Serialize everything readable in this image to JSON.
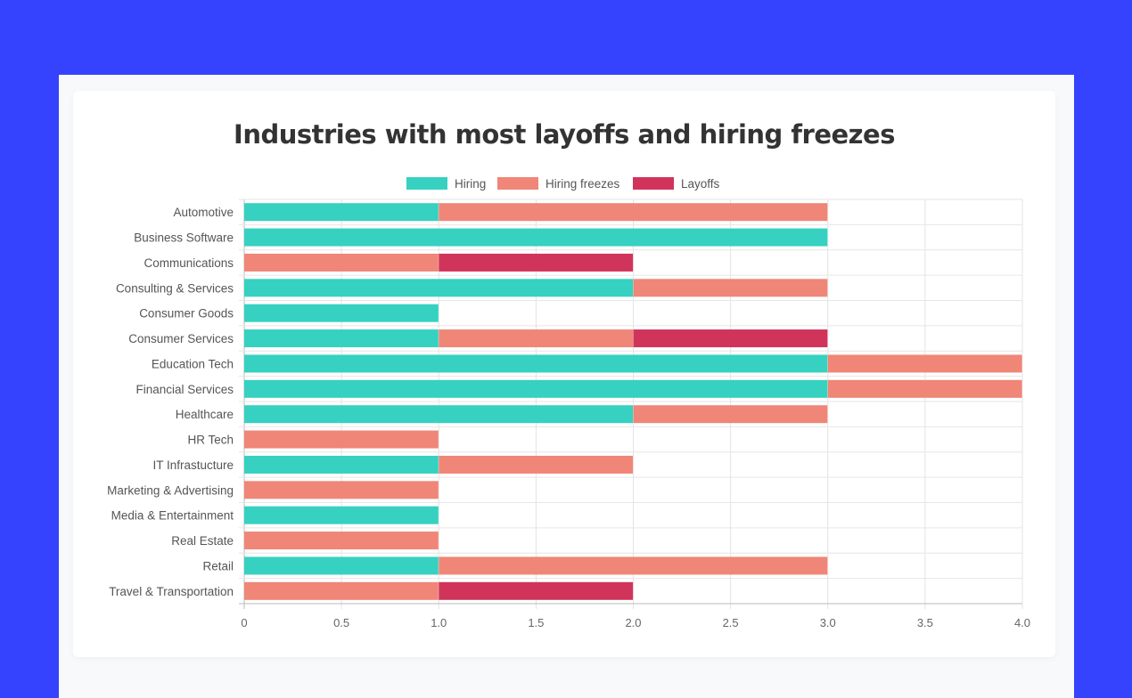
{
  "chart_data": {
    "type": "bar",
    "orientation": "horizontal",
    "stacked": true,
    "title": "Industries with most layoffs and hiring freezes",
    "categories": [
      "Automotive",
      "Business Software",
      "Communications",
      "Consulting & Services",
      "Consumer Goods",
      "Consumer Services",
      "Education Tech",
      "Financial Services",
      "Healthcare",
      "HR Tech",
      "IT Infrastucture",
      "Marketing & Advertising",
      "Media & Entertainment",
      "Real Estate",
      "Retail",
      "Travel & Transportation"
    ],
    "series": [
      {
        "name": "Hiring",
        "color": "#36d1c0",
        "values": [
          1,
          3,
          0,
          2,
          1,
          1,
          3,
          3,
          2,
          0,
          1,
          0,
          1,
          0,
          1,
          0
        ]
      },
      {
        "name": "Hiring freezes",
        "color": "#ef8677",
        "values": [
          2,
          0,
          1,
          1,
          0,
          1,
          1,
          1,
          1,
          1,
          1,
          1,
          0,
          1,
          2,
          1
        ]
      },
      {
        "name": "Layoffs",
        "color": "#d1345b",
        "values": [
          0,
          0,
          1,
          0,
          0,
          1,
          0,
          0,
          0,
          0,
          0,
          0,
          0,
          0,
          0,
          1
        ]
      }
    ],
    "xlim": [
      0,
      4
    ],
    "xticks": [
      0,
      0.5,
      1,
      1.5,
      2,
      2.5,
      3,
      3.5,
      4
    ],
    "xtick_labels": [
      "0",
      "0.5",
      "1.0",
      "1.5",
      "2.0",
      "2.5",
      "3.0",
      "3.5",
      "4.0"
    ],
    "grid": true,
    "legend": "top"
  }
}
